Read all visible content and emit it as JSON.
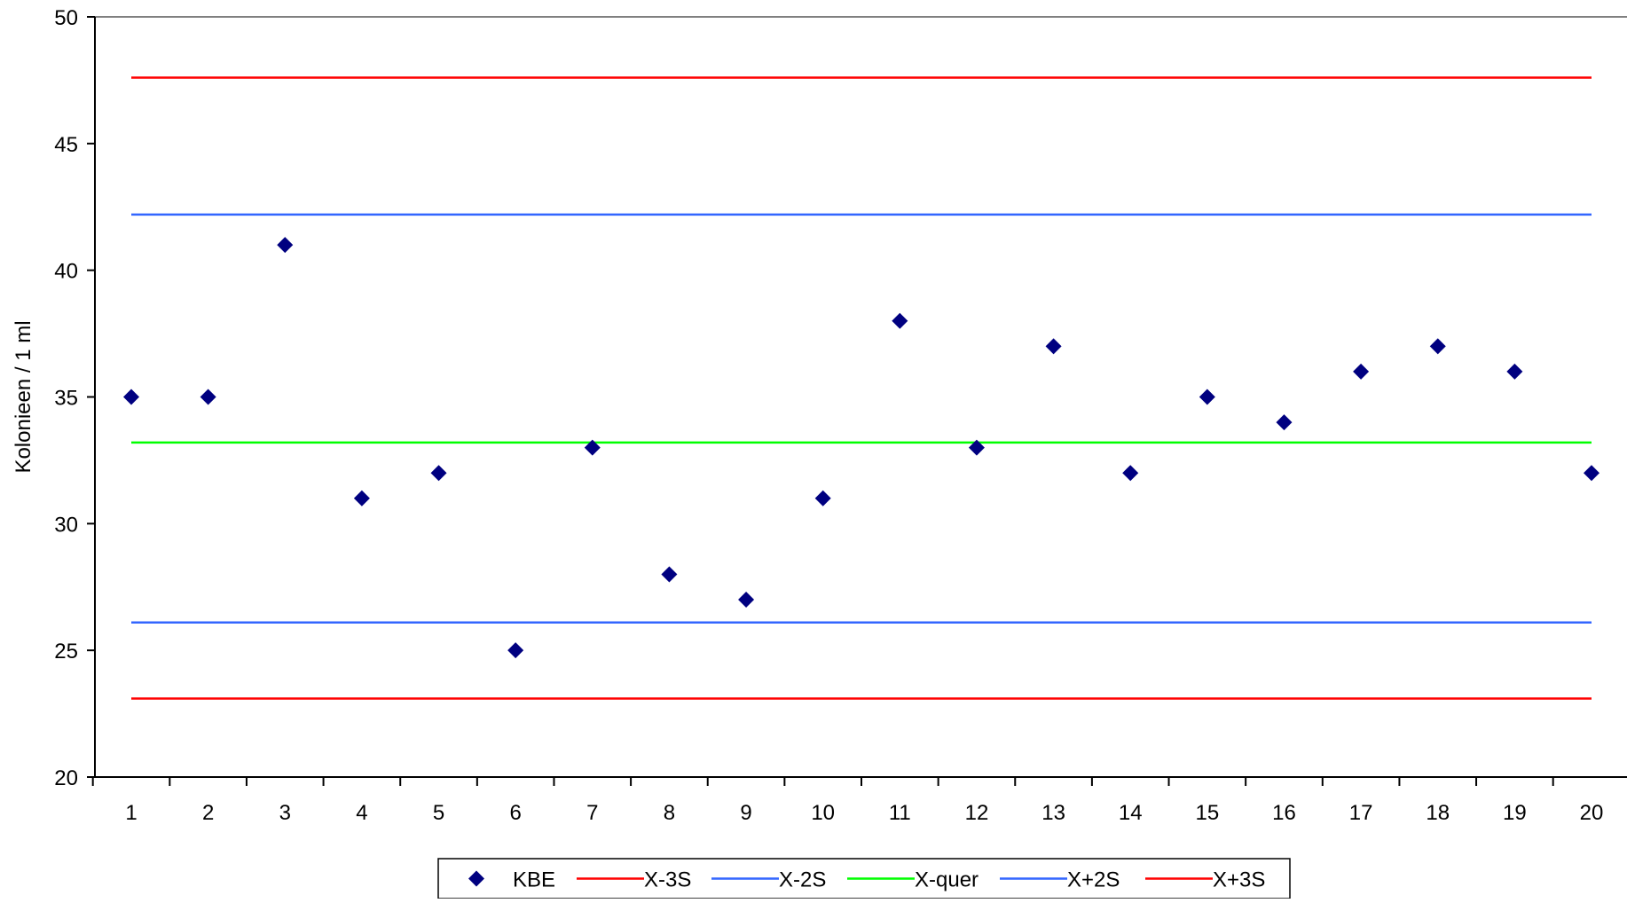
{
  "chart_data": {
    "type": "scatter",
    "title": "",
    "xlabel": "",
    "ylabel": "Kolonieen  / 1 ml",
    "xlim": [
      0.5,
      20.5
    ],
    "ylim": [
      20,
      50
    ],
    "y_ticks": [
      20,
      25,
      30,
      35,
      40,
      45,
      50
    ],
    "x_ticks": [
      1,
      2,
      3,
      4,
      5,
      6,
      7,
      8,
      9,
      10,
      11,
      12,
      13,
      14,
      15,
      16,
      17,
      18,
      19,
      20
    ],
    "grid": false,
    "legend": {
      "position": "bottom"
    },
    "series": [
      {
        "name": "KBE",
        "kind": "markers",
        "marker": "diamond",
        "color": "#000080",
        "x": [
          1,
          2,
          3,
          4,
          5,
          6,
          7,
          8,
          9,
          10,
          11,
          12,
          13,
          14,
          15,
          16,
          17,
          18,
          19,
          20
        ],
        "y": [
          35,
          35,
          41,
          31,
          32,
          25,
          33,
          28,
          27,
          31,
          38,
          33,
          37,
          32,
          35,
          34,
          36,
          37,
          36,
          32
        ]
      },
      {
        "name": "X-3S",
        "kind": "hline",
        "color": "#ff0000",
        "value": 23.1
      },
      {
        "name": "X-2S",
        "kind": "hline",
        "color": "#3366ff",
        "value": 26.1
      },
      {
        "name": "X-quer",
        "kind": "hline",
        "color": "#00ff00",
        "value": 33.2
      },
      {
        "name": "X+2S",
        "kind": "hline",
        "color": "#3366ff",
        "value": 42.2
      },
      {
        "name": "X+3S",
        "kind": "hline",
        "color": "#ff0000",
        "value": 47.6
      }
    ]
  }
}
